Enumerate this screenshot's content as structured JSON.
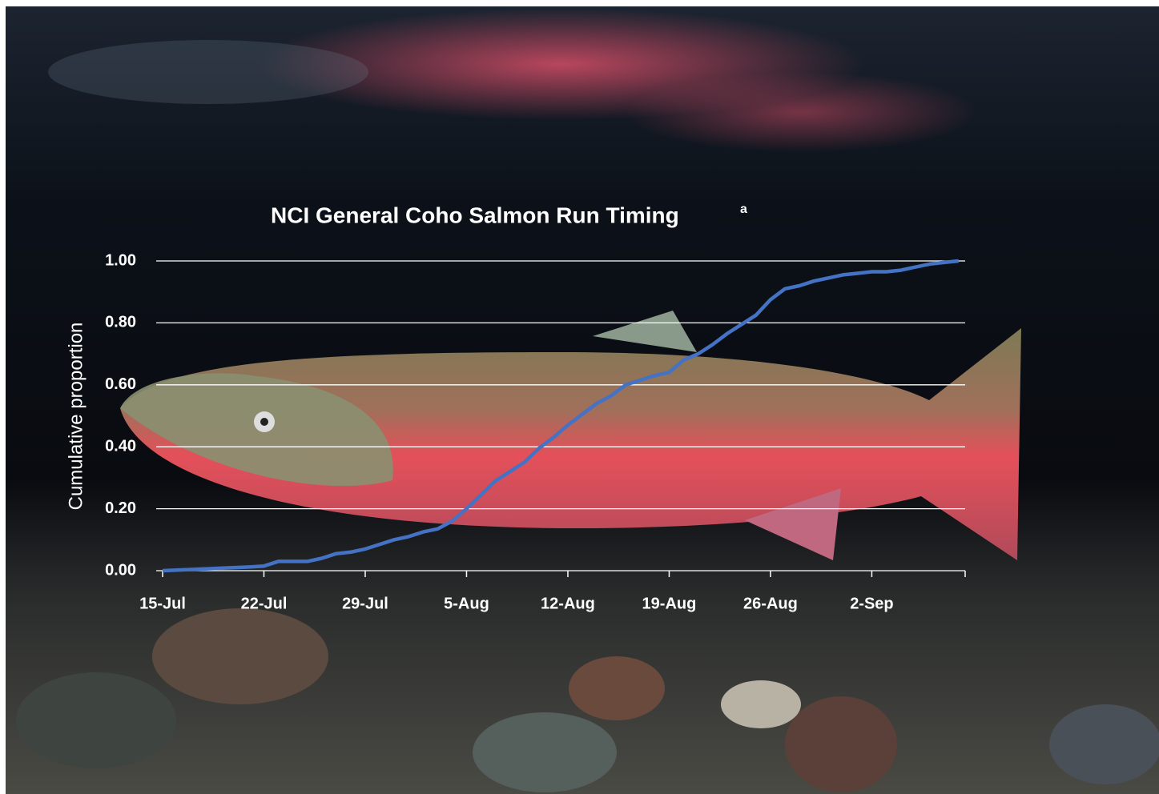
{
  "chart_data": {
    "type": "line",
    "title": "NCI General Coho Salmon Run Timing",
    "title_note": "a",
    "y_label": "Cumulative proportion",
    "categories": [
      "15-Jul",
      null,
      null,
      null,
      null,
      null,
      null,
      "22-Jul",
      null,
      null,
      null,
      null,
      null,
      null,
      "29-Jul",
      null,
      null,
      null,
      null,
      null,
      null,
      "5-Aug",
      null,
      null,
      null,
      null,
      null,
      null,
      "12-Aug",
      null,
      null,
      null,
      null,
      null,
      null,
      "19-Aug",
      null,
      null,
      null,
      null,
      null,
      null,
      "26-Aug",
      null,
      null,
      null,
      null,
      null,
      null,
      "2-Sep",
      null,
      null,
      null,
      null,
      null,
      null
    ],
    "series": [
      {
        "name": "Cumulative proportion",
        "color": "#4472c4",
        "values": [
          0,
          0.002,
          0.004,
          0.006,
          0.008,
          0.01,
          0.012,
          0.015,
          0.03,
          0.03,
          0.03,
          0.04,
          0.055,
          0.06,
          0.07,
          0.085,
          0.1,
          0.11,
          0.125,
          0.135,
          0.16,
          0.2,
          0.245,
          0.29,
          0.32,
          0.35,
          0.395,
          0.43,
          0.47,
          0.505,
          0.54,
          0.565,
          0.6,
          0.615,
          0.63,
          0.64,
          0.68,
          0.7,
          0.73,
          0.765,
          0.795,
          0.825,
          0.875,
          0.91,
          0.92,
          0.935,
          0.945,
          0.955,
          0.96,
          0.965,
          0.965,
          0.97,
          0.98,
          0.99,
          0.995,
          1.0
        ]
      }
    ],
    "ylim": [
      0,
      1
    ],
    "yticks": [
      {
        "value": 0,
        "label": "0.00"
      },
      {
        "value": 0.2,
        "label": "0.20"
      },
      {
        "value": 0.4,
        "label": "0.40"
      },
      {
        "value": 0.6,
        "label": "0.60"
      },
      {
        "value": 0.8,
        "label": "0.80"
      },
      {
        "value": 1,
        "label": "1.00"
      }
    ],
    "grid": true
  }
}
